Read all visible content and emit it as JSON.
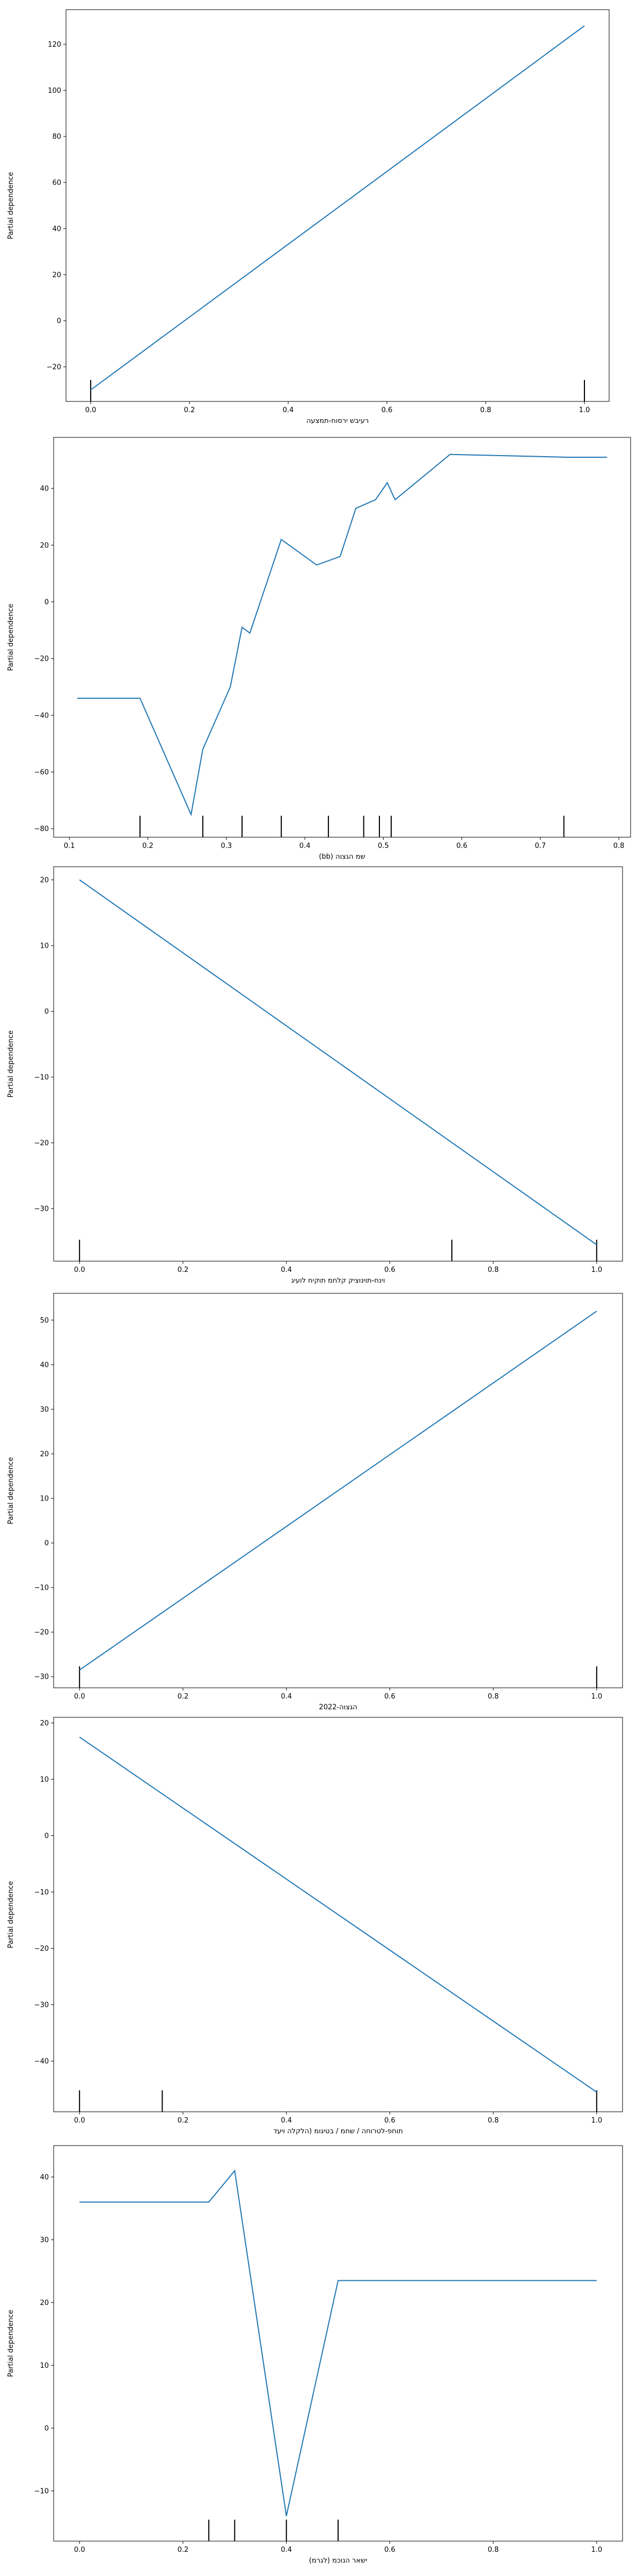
{
  "chart_data": [
    {
      "type": "line",
      "xlabel": "רעיבש ירסוח-תמצעה",
      "ylabel": "Partial dependence",
      "xlim": [
        -0.05,
        1.05
      ],
      "ylim": [
        -35,
        135
      ],
      "xticks": [
        0.0,
        0.2,
        0.4,
        0.6,
        0.8,
        1.0
      ],
      "xtick_labels": [
        "0.0",
        "0.2",
        "0.4",
        "0.6",
        "0.8",
        "1.0"
      ],
      "yticks": [
        -20,
        0,
        20,
        40,
        60,
        80,
        100,
        120
      ],
      "ytick_labels": [
        "−20",
        "0",
        "20",
        "40",
        "60",
        "80",
        "100",
        "120"
      ],
      "series": [
        {
          "x": [
            0.0,
            1.0
          ],
          "y": [
            -30,
            128
          ]
        }
      ],
      "rug": [
        0.0,
        1.0
      ],
      "color": "#1f77b4"
    },
    {
      "type": "line",
      "xlabel": "(bb) שמ הגצוה",
      "ylabel": "Partial dependence",
      "xlim": [
        0.08,
        0.815
      ],
      "ylim": [
        -83,
        58
      ],
      "xticks": [
        0.1,
        0.2,
        0.3,
        0.4,
        0.5,
        0.6,
        0.7,
        0.8
      ],
      "xtick_labels": [
        "0.1",
        "0.2",
        "0.3",
        "0.4",
        "0.5",
        "0.6",
        "0.7",
        "0.8"
      ],
      "yticks": [
        -80,
        -60,
        -40,
        -20,
        0,
        20,
        40
      ],
      "ytick_labels": [
        "−80",
        "−60",
        "−40",
        "−20",
        "0",
        "20",
        "40"
      ],
      "series": [
        {
          "x": [
            0.11,
            0.19,
            0.255,
            0.27,
            0.305,
            0.32,
            0.33,
            0.37,
            0.415,
            0.445,
            0.465,
            0.49,
            0.505,
            0.515,
            0.585,
            0.735,
            0.785
          ],
          "y": [
            -34,
            -34,
            -75,
            -52,
            -30,
            -9,
            -11,
            22,
            13,
            16,
            33,
            36,
            42,
            36,
            52,
            51,
            51
          ]
        }
      ],
      "rug": [
        0.19,
        0.27,
        0.32,
        0.37,
        0.43,
        0.475,
        0.495,
        0.51,
        0.73
      ],
      "color": "#1f77b4"
    },
    {
      "type": "line",
      "xlabel": "וינח-תוינוציק קלחמ תוקיח לועיג",
      "ylabel": "Partial dependence",
      "xlim": [
        -0.05,
        1.05
      ],
      "ylim": [
        -38,
        22
      ],
      "xticks": [
        0.0,
        0.2,
        0.4,
        0.6,
        0.8,
        1.0
      ],
      "xtick_labels": [
        "0.0",
        "0.2",
        "0.4",
        "0.6",
        "0.8",
        "1.0"
      ],
      "yticks": [
        -30,
        -20,
        -10,
        0,
        10,
        20
      ],
      "ytick_labels": [
        "−30",
        "−20",
        "−10",
        "0",
        "10",
        "20"
      ],
      "series": [
        {
          "x": [
            0.0,
            1.0
          ],
          "y": [
            20,
            -35.5
          ]
        }
      ],
      "rug": [
        0.0,
        0.72,
        1.0
      ],
      "color": "#1f77b4"
    },
    {
      "type": "line",
      "xlabel": "הגצוה-2022",
      "ylabel": "Partial dependence",
      "xlim": [
        -0.05,
        1.05
      ],
      "ylim": [
        -32.5,
        56
      ],
      "xticks": [
        0.0,
        0.2,
        0.4,
        0.6,
        0.8,
        1.0
      ],
      "xtick_labels": [
        "0.0",
        "0.2",
        "0.4",
        "0.6",
        "0.8",
        "1.0"
      ],
      "yticks": [
        -30,
        -20,
        -10,
        0,
        10,
        20,
        30,
        40,
        50
      ],
      "ytick_labels": [
        "−30",
        "−20",
        "−10",
        "0",
        "10",
        "20",
        "30",
        "40",
        "50"
      ],
      "series": [
        {
          "x": [
            0.0,
            1.0
          ],
          "y": [
            -28.5,
            52
          ]
        }
      ],
      "rug": [
        0.0,
        1.0
      ],
      "color": "#1f77b4"
    },
    {
      "type": "line",
      "xlabel": "תוחפ-לטרוחה / שחמ / בטיגומ (הלקלה ויעד",
      "ylabel": "Partial dependence",
      "xlim": [
        -0.05,
        1.05
      ],
      "ylim": [
        -49,
        21
      ],
      "xticks": [
        0.0,
        0.2,
        0.4,
        0.6,
        0.8,
        1.0
      ],
      "xtick_labels": [
        "0.0",
        "0.2",
        "0.4",
        "0.6",
        "0.8",
        "1.0"
      ],
      "yticks": [
        -40,
        -30,
        -20,
        -10,
        0,
        10,
        20
      ],
      "ytick_labels": [
        "−40",
        "−30",
        "−20",
        "−10",
        "0",
        "10",
        "20"
      ],
      "series": [
        {
          "x": [
            0.0,
            1.0
          ],
          "y": [
            17.5,
            -45.5
          ]
        }
      ],
      "rug": [
        0.0,
        0.16,
        1.0
      ],
      "color": "#1f77b4"
    },
    {
      "type": "line",
      "xlabel": "ישאר הנוכמ (לגרמ)",
      "ylabel": "Partial dependence",
      "xlim": [
        -0.05,
        1.05
      ],
      "ylim": [
        -18,
        45
      ],
      "xticks": [
        0.0,
        0.2,
        0.4,
        0.6,
        0.8,
        1.0
      ],
      "xtick_labels": [
        "0.0",
        "0.2",
        "0.4",
        "0.6",
        "0.8",
        "1.0"
      ],
      "yticks": [
        -10,
        0,
        10,
        20,
        30,
        40
      ],
      "ytick_labels": [
        "−10",
        "0",
        "10",
        "20",
        "30",
        "40"
      ],
      "series": [
        {
          "x": [
            0.0,
            0.25,
            0.3,
            0.4,
            0.5,
            1.0
          ],
          "y": [
            36,
            36,
            41,
            -14,
            23.5,
            23.5
          ]
        }
      ],
      "rug": [
        0.25,
        0.3,
        0.4,
        0.5
      ],
      "color": "#1f77b4"
    }
  ]
}
